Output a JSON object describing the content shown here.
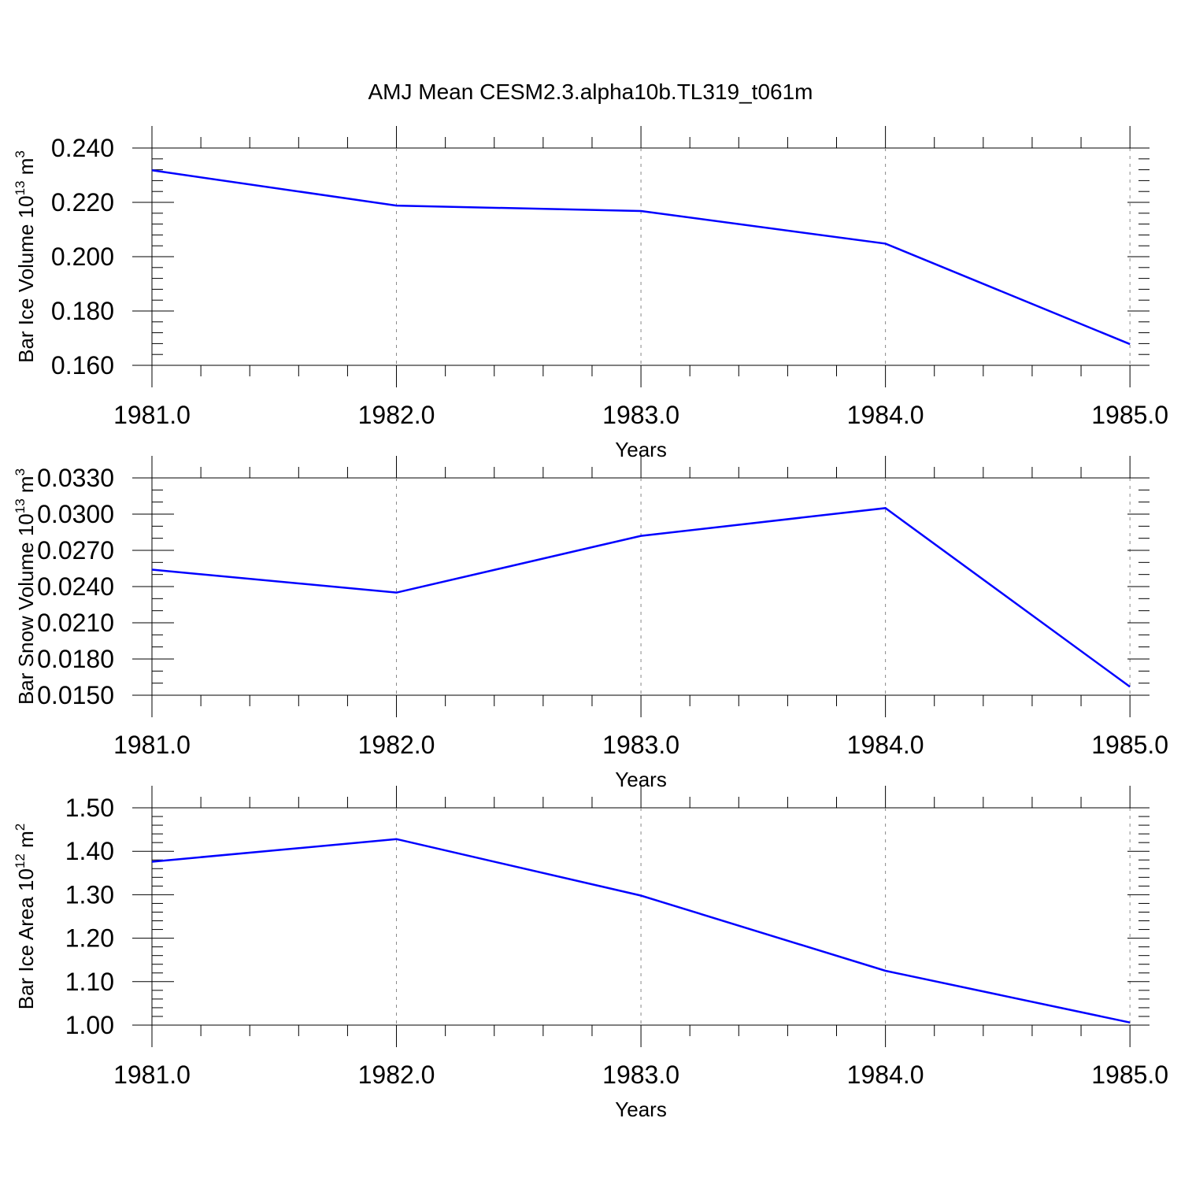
{
  "figure": {
    "title": "AMJ Mean CESM2.3.alpha10b.TL319_t061m"
  },
  "style": {
    "line_color": "#0000ff",
    "axis_color": "#000000",
    "grid_color": "#888888",
    "background": "#ffffff"
  },
  "chart_data": [
    {
      "type": "line",
      "title": "",
      "xlabel": "Years",
      "ylabel": {
        "text": "Bar Ice Volume 10",
        "exponent": "13",
        "unit": " m",
        "unit_exponent": "3"
      },
      "x": [
        1981,
        1982,
        1983,
        1984,
        1985
      ],
      "series": [
        {
          "values": [
            0.2318,
            0.2188,
            0.2168,
            0.2048,
            0.1678
          ]
        }
      ],
      "xlim": [
        1981,
        1985.08
      ],
      "ylim": [
        0.16,
        0.24
      ],
      "x_ticks": [
        "1981.0",
        "1982.0",
        "1983.0",
        "1984.0",
        "1985.0"
      ],
      "y_ticks": [
        "0.160",
        "0.180",
        "0.200",
        "0.220",
        "0.240"
      ],
      "y_tick_values": [
        0.16,
        0.18,
        0.2,
        0.22,
        0.24
      ],
      "y_minor_per_major": 5,
      "x_minor_per_major": 5,
      "grid": "vertical dashed at major x ticks"
    },
    {
      "type": "line",
      "title": "",
      "xlabel": "Years",
      "ylabel": {
        "text": "Bar Snow Volume 10",
        "exponent": "13",
        "unit": " m",
        "unit_exponent": "3"
      },
      "x": [
        1981,
        1982,
        1983,
        1984,
        1985
      ],
      "series": [
        {
          "values": [
            0.0254,
            0.0235,
            0.0282,
            0.0305,
            0.0157
          ]
        }
      ],
      "xlim": [
        1981,
        1985.08
      ],
      "ylim": [
        0.015,
        0.033
      ],
      "x_ticks": [
        "1981.0",
        "1982.0",
        "1983.0",
        "1984.0",
        "1985.0"
      ],
      "y_ticks": [
        "0.0150",
        "0.0180",
        "0.0210",
        "0.0240",
        "0.0270",
        "0.0300",
        "0.0330"
      ],
      "y_tick_values": [
        0.015,
        0.018,
        0.021,
        0.024,
        0.027,
        0.03,
        0.033
      ],
      "y_minor_per_major": 3,
      "x_minor_per_major": 5,
      "grid": "vertical dashed at major x ticks"
    },
    {
      "type": "line",
      "title": "",
      "xlabel": "Years",
      "ylabel": {
        "text": "Bar Ice Area 10",
        "exponent": "12",
        "unit": " m",
        "unit_exponent": "2"
      },
      "x": [
        1981,
        1982,
        1983,
        1984,
        1985
      ],
      "series": [
        {
          "values": [
            1.376,
            1.428,
            1.298,
            1.125,
            1.006
          ]
        }
      ],
      "xlim": [
        1981,
        1985.08
      ],
      "ylim": [
        1.0,
        1.5
      ],
      "x_ticks": [
        "1981.0",
        "1982.0",
        "1983.0",
        "1984.0",
        "1985.0"
      ],
      "y_ticks": [
        "1.00",
        "1.10",
        "1.20",
        "1.30",
        "1.40",
        "1.50"
      ],
      "y_tick_values": [
        1.0,
        1.1,
        1.2,
        1.3,
        1.4,
        1.5
      ],
      "y_minor_per_major": 5,
      "x_minor_per_major": 5,
      "grid": "vertical dashed at major x ticks"
    }
  ]
}
